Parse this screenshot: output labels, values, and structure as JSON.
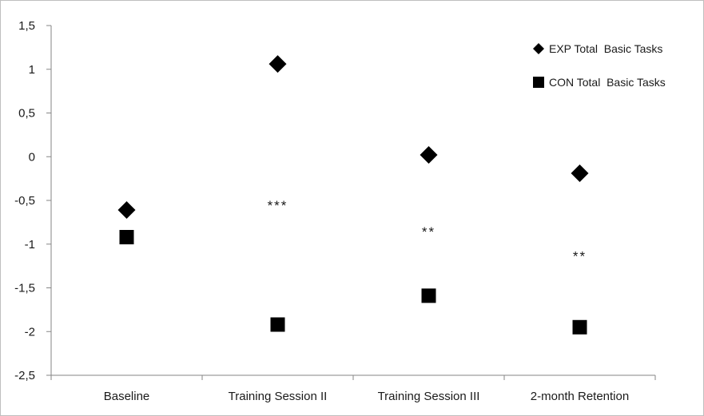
{
  "chart_data": {
    "type": "scatter",
    "categories": [
      "Baseline",
      "Training Session II",
      "Training Session III",
      "2-month Retention"
    ],
    "series": [
      {
        "name": "EXP Total  Basic Tasks",
        "marker": "diamond",
        "values": [
          -0.61,
          1.06,
          0.02,
          -0.19
        ]
      },
      {
        "name": "CON Total  Basic Tasks",
        "marker": "square",
        "values": [
          -0.92,
          -1.92,
          -1.59,
          -1.95
        ]
      }
    ],
    "annotations": [
      {
        "category": "Training Session II",
        "text": "***",
        "y": -0.5
      },
      {
        "category": "Training Session III",
        "text": "**",
        "y": -0.8
      },
      {
        "category": "2-month Retention",
        "text": "**",
        "y": -1.08
      }
    ],
    "ylim": [
      -2.5,
      1.5
    ],
    "yticks": [
      1.5,
      1,
      0.5,
      0,
      -0.5,
      -1,
      -1.5,
      -2,
      -2.5
    ],
    "ytick_labels": [
      "1,5",
      "1",
      "0,5",
      "0",
      "-0,5",
      "-1",
      "-1,5",
      "-2",
      "-2,5"
    ],
    "legend_position": "top-right",
    "grid": false,
    "colors": {
      "marker": "#000000",
      "axis": "#868686"
    }
  }
}
